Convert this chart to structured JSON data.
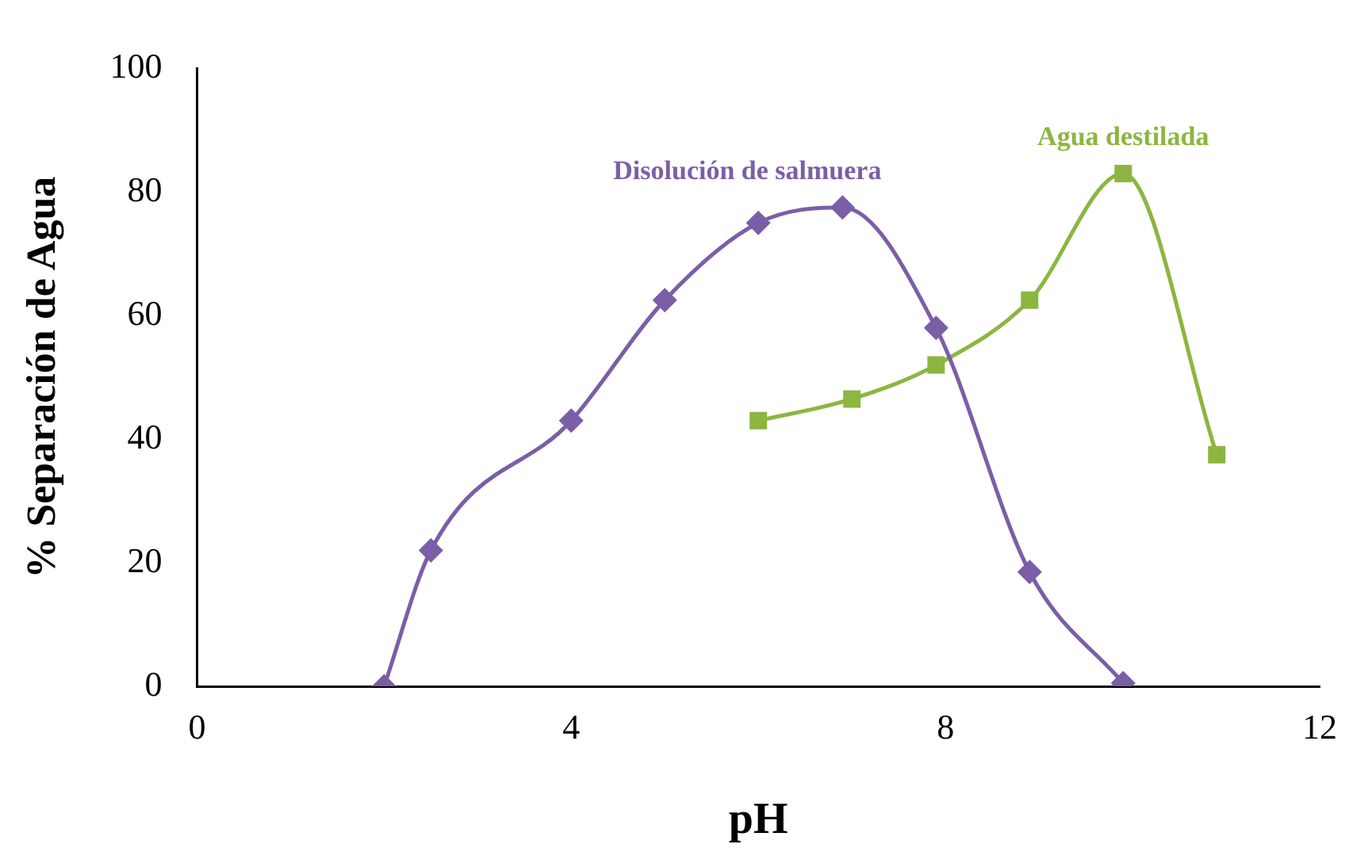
{
  "chart_data": {
    "type": "line",
    "xlabel": "pH",
    "ylabel": "% Separación de Agua",
    "xlim": [
      0,
      12
    ],
    "xticks": [
      0,
      4,
      8,
      12
    ],
    "ylim": [
      0,
      100
    ],
    "yticks": [
      0,
      20,
      40,
      60,
      80,
      100
    ],
    "grid": false,
    "legend": false,
    "series": [
      {
        "name": "Disolución de salmuera",
        "color": "#7b5ea7",
        "marker": "diamond",
        "x": [
          2,
          2.5,
          4,
          5,
          6,
          6.9,
          7.9,
          8.9,
          9.9
        ],
        "values": [
          0,
          22,
          43,
          62.5,
          75,
          77.5,
          58,
          18.5,
          0.5
        ]
      },
      {
        "name": "Agua destilada",
        "color": "#8cb640",
        "marker": "square",
        "x": [
          6,
          7,
          7.9,
          8.9,
          9.9,
          10.9
        ],
        "values": [
          43,
          46.5,
          52,
          62.5,
          83,
          37.5
        ]
      }
    ]
  }
}
